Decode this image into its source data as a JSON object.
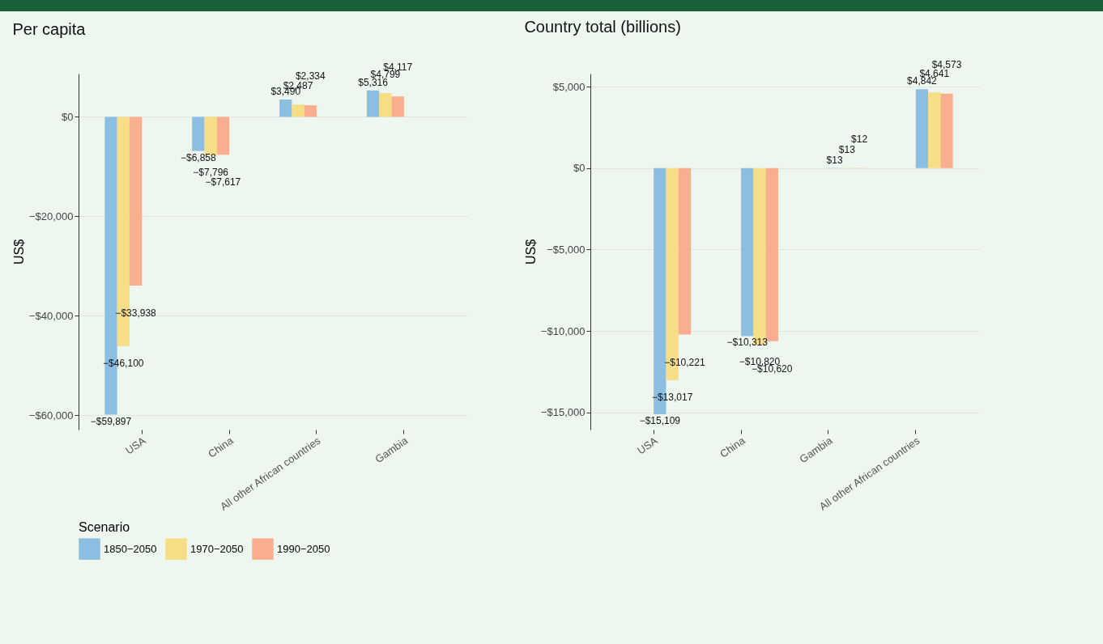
{
  "chart_data": [
    {
      "type": "bar",
      "title": "Per capita",
      "ylabel": "US$",
      "legend_title": "Scenario",
      "legend": "bottom",
      "grid": true,
      "categories": [
        "USA",
        "China",
        "All other African countries",
        "Gambia"
      ],
      "ylim": [
        -62900,
        8700
      ],
      "yticks": [
        {
          "value": -60000,
          "label": "−$60,000"
        },
        {
          "value": -40000,
          "label": "−$40,000"
        },
        {
          "value": -20000,
          "label": "−$20,000"
        },
        {
          "value": 0,
          "label": "$0"
        }
      ],
      "series": [
        {
          "name": "1850−2050",
          "color": "#7fb8de",
          "values": [
            -59897,
            -6858,
            3490,
            5316
          ],
          "value_labels": [
            "−$59,897",
            "−$6,858",
            "$3,490",
            "$5,316"
          ]
        },
        {
          "name": "1970−2050",
          "color": "#f5dc7a",
          "values": [
            -46100,
            -7796,
            2487,
            4799
          ],
          "value_labels": [
            "−$46,100",
            "−$7,796",
            "$2,487",
            "$4,799"
          ]
        },
        {
          "name": "1990−2050",
          "color": "#f9a684",
          "values": [
            -33938,
            -7617,
            2334,
            4117
          ],
          "value_labels": [
            "−$33,938",
            "−$7,617",
            "$2,334",
            "$4,117"
          ]
        }
      ]
    },
    {
      "type": "bar",
      "title": "Country total (billions)",
      "ylabel": "US$",
      "grid": true,
      "categories": [
        "USA",
        "China",
        "Gambia",
        "All other African countries"
      ],
      "ylim": [
        -16050,
        5800
      ],
      "yticks": [
        {
          "value": -15000,
          "label": "−$15,000"
        },
        {
          "value": -10000,
          "label": "−$10,000"
        },
        {
          "value": -5000,
          "label": "−$5,000"
        },
        {
          "value": 0,
          "label": "$0"
        },
        {
          "value": 5000,
          "label": "$5,000"
        }
      ],
      "series": [
        {
          "color": "#7fb8de",
          "values": [
            -15109,
            -10313,
            13,
            4842
          ],
          "value_labels": [
            "−$15,109",
            "−$10,313",
            "$13",
            "$4,842"
          ]
        },
        {
          "color": "#f5dc7a",
          "values": [
            -13017,
            -10820,
            13,
            4641
          ],
          "value_labels": [
            "−$13,017",
            "−$10,820",
            "$13",
            "$4,641"
          ]
        },
        {
          "color": "#f9a684",
          "values": [
            -10221,
            -10620,
            12,
            4573
          ],
          "value_labels": [
            "−$10,221",
            "−$10,620",
            "$12",
            "$4,573"
          ]
        }
      ]
    }
  ]
}
